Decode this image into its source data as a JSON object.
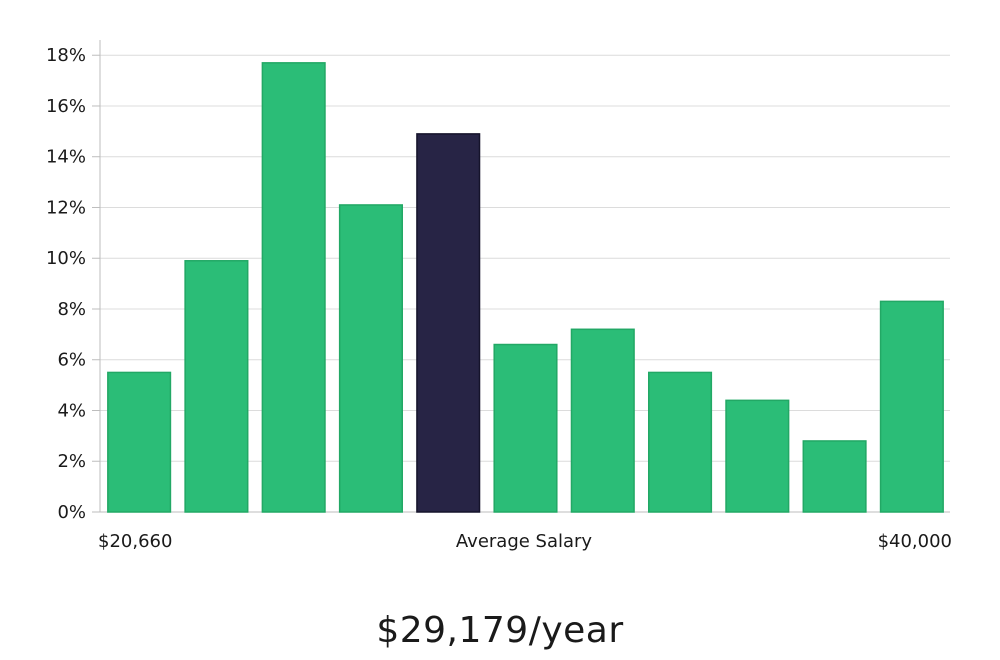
{
  "chart_data": {
    "type": "bar",
    "title": "",
    "xlabel": "Average Salary",
    "ylabel": "",
    "ylim": [
      0,
      18.6
    ],
    "yticks": [
      "0%",
      "2%",
      "4%",
      "6%",
      "8%",
      "10%",
      "12%",
      "14%",
      "16%",
      "18%"
    ],
    "ytick_values": [
      0,
      2,
      4,
      6,
      8,
      10,
      12,
      14,
      16,
      18
    ],
    "values": [
      5.5,
      9.9,
      17.7,
      12.1,
      14.9,
      6.6,
      7.2,
      5.5,
      4.4,
      2.8,
      8.3
    ],
    "highlight_index": 4,
    "x_left_label": "$20,660",
    "x_center_label": "Average Salary",
    "x_right_label": "$40,000",
    "grid": true,
    "colors": {
      "bar": "#2bbd77",
      "bar_edge": "#22a865",
      "highlight": "#272445",
      "grid": "#dcdcdc",
      "axis": "#bdbdbd"
    }
  },
  "salary": "$29,179/year"
}
